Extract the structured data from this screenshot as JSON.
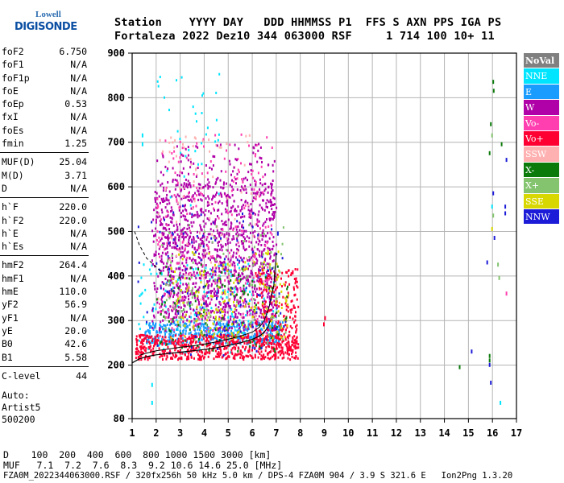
{
  "logo": {
    "top": "Lowell",
    "main": "DIGISONDE"
  },
  "header": {
    "line1": "Station    YYYY DAY   DDD HHMMSS P1  FFS S AXN PPS IGA PS",
    "line2": "Fortaleza 2022 Dez10 344 063000 RSF     1 714 100 10+ 11"
  },
  "parameters": [
    [
      {
        "name": "foF2",
        "value": "6.750"
      },
      {
        "name": "foF1",
        "value": "N/A"
      },
      {
        "name": "foF1p",
        "value": "N/A"
      },
      {
        "name": "foE",
        "value": "N/A"
      },
      {
        "name": "foEp",
        "value": "0.53"
      },
      {
        "name": "fxI",
        "value": "N/A"
      },
      {
        "name": "foEs",
        "value": "N/A"
      },
      {
        "name": "fmin",
        "value": "1.25"
      }
    ],
    [
      {
        "name": "MUF(D)",
        "value": "25.04"
      },
      {
        "name": "M(D)",
        "value": "3.71"
      },
      {
        "name": "D",
        "value": "N/A"
      }
    ],
    [
      {
        "name": "h`F",
        "value": "220.0"
      },
      {
        "name": "h`F2",
        "value": "220.0"
      },
      {
        "name": "h`E",
        "value": "N/A"
      },
      {
        "name": "h`Es",
        "value": "N/A"
      }
    ],
    [
      {
        "name": "hmF2",
        "value": "264.4"
      },
      {
        "name": "hmF1",
        "value": "N/A"
      },
      {
        "name": "hmE",
        "value": "110.0"
      },
      {
        "name": "yF2",
        "value": "56.9"
      },
      {
        "name": "yF1",
        "value": "N/A"
      },
      {
        "name": "yE",
        "value": "20.0"
      },
      {
        "name": "B0",
        "value": "42.6"
      },
      {
        "name": "B1",
        "value": "5.58"
      }
    ],
    [
      {
        "name": "C-level",
        "value": "44"
      }
    ]
  ],
  "auto_info": {
    "line1": "Auto:",
    "line2": "Artist5",
    "line3": "500200"
  },
  "legend": [
    {
      "label": "NoVal",
      "color": "#808080"
    },
    {
      "label": "NNE",
      "color": "#00e5ff"
    },
    {
      "label": "E",
      "color": "#1a9cff"
    },
    {
      "label": "W",
      "color": "#b000a8"
    },
    {
      "label": "Vo-",
      "color": "#ff3fb0"
    },
    {
      "label": "Vo+",
      "color": "#ff0033"
    },
    {
      "label": "SSW",
      "color": "#ffb0b0"
    },
    {
      "label": "X-",
      "color": "#0a7a0a"
    },
    {
      "label": "X+",
      "color": "#84c46e"
    },
    {
      "label": "SSE",
      "color": "#d8d800"
    },
    {
      "label": "NNW",
      "color": "#1c1cd8"
    }
  ],
  "mufline": {
    "d_line": "D    100  200  400  600  800 1000 1500 3000 [km]",
    "muf_line": "MUF   7.1  7.2  7.6  8.3  9.2 10.6 14.6 25.0 [MHz]"
  },
  "footer": "FZA0M_2022344063000.RSF / 320fx256h 50 kHz 5.0 km / DPS-4 FZA0M 904 / 3.9 S 321.6 E   Ion2Png 1.3.20",
  "chart_data": {
    "type": "scatter",
    "xlabel": "",
    "ylabel": "",
    "xlim": [
      1,
      17
    ],
    "ylim": [
      80,
      900
    ],
    "x_ticks": [
      1,
      2,
      3,
      4,
      5,
      6,
      7,
      8,
      9,
      10,
      11,
      12,
      13,
      14,
      15,
      16,
      17
    ],
    "y_ticks": [
      80,
      200,
      300,
      400,
      500,
      600,
      700,
      800,
      900
    ],
    "grid": true,
    "profile_curve": {
      "x": [
        1.0,
        1.3,
        1.6,
        2.0,
        2.5,
        3.0,
        3.5,
        4.0,
        4.5,
        5.0,
        5.5,
        6.0,
        6.3,
        6.5,
        6.65,
        6.75
      ],
      "y": [
        205,
        214,
        219,
        223,
        226,
        229,
        232,
        235,
        239,
        244,
        250,
        258,
        265,
        274,
        285,
        300
      ]
    },
    "trace_curve": {
      "x": [
        1.3,
        1.6,
        2.0,
        2.5,
        3.0,
        3.5,
        4.0,
        4.5,
        5.0,
        5.5,
        6.0,
        6.3,
        6.5,
        6.7,
        6.9,
        7.0
      ],
      "y": [
        222,
        227,
        232,
        236,
        240,
        243,
        247,
        252,
        258,
        265,
        274,
        285,
        300,
        330,
        380,
        450
      ]
    },
    "dashed_curve": {
      "x": [
        1.1,
        1.3,
        1.6,
        2.0,
        2.2
      ],
      "y": [
        500,
        470,
        440,
        420,
        410
      ]
    },
    "echo_regions": [
      {
        "series": "NNE",
        "x": [
          1.2,
          7.0
        ],
        "y": [
          230,
          430
        ],
        "count": 200
      },
      {
        "series": "E",
        "x": [
          1.5,
          7.3
        ],
        "y": [
          250,
          300
        ],
        "count": 450
      },
      {
        "series": "W",
        "x": [
          1.8,
          7.0
        ],
        "y": [
          280,
          620
        ],
        "count": 900
      },
      {
        "series": "W",
        "x": [
          2.2,
          6.8
        ],
        "y": [
          300,
          500
        ],
        "count": 400
      },
      {
        "series": "Vo-",
        "x": [
          2.0,
          6.8
        ],
        "y": [
          250,
          720
        ],
        "count": 250
      },
      {
        "series": "Vo+",
        "x": [
          1.1,
          7.9
        ],
        "y": [
          215,
          270
        ],
        "count": 650
      },
      {
        "series": "Vo+",
        "x": [
          6.1,
          7.9
        ],
        "y": [
          240,
          420
        ],
        "count": 200
      },
      {
        "series": "SSW",
        "x": [
          2.0,
          6.5
        ],
        "y": [
          300,
          720
        ],
        "count": 120
      },
      {
        "series": "X-",
        "x": [
          2.0,
          7.5
        ],
        "y": [
          230,
          430
        ],
        "count": 120
      },
      {
        "series": "X+",
        "x": [
          2.2,
          7.5
        ],
        "y": [
          250,
          520
        ],
        "count": 120
      },
      {
        "series": "SSE",
        "x": [
          2.5,
          7.5
        ],
        "y": [
          260,
          460
        ],
        "count": 180
      },
      {
        "series": "NNW",
        "x": [
          1.2,
          7.5
        ],
        "y": [
          220,
          560
        ],
        "count": 120
      },
      {
        "series": "NNE",
        "x": [
          2.0,
          4.6
        ],
        "y": [
          540,
          860
        ],
        "count": 35
      },
      {
        "series": "W",
        "x": [
          2.0,
          6.9
        ],
        "y": [
          480,
          700
        ],
        "count": 180
      }
    ],
    "isolated_marks": [
      {
        "series": "X-",
        "x": 16.0,
        "y": 840
      },
      {
        "series": "X-",
        "x": 16.02,
        "y": 820
      },
      {
        "series": "X-",
        "x": 15.9,
        "y": 745
      },
      {
        "series": "X+",
        "x": 15.95,
        "y": 720
      },
      {
        "series": "X-",
        "x": 15.85,
        "y": 680
      },
      {
        "series": "X-",
        "x": 16.35,
        "y": 700
      },
      {
        "series": "NNW",
        "x": 16.55,
        "y": 665
      },
      {
        "series": "NNW",
        "x": 16.0,
        "y": 590
      },
      {
        "series": "NNE",
        "x": 15.95,
        "y": 560
      },
      {
        "series": "X+",
        "x": 16.0,
        "y": 540
      },
      {
        "series": "SSE",
        "x": 15.95,
        "y": 510
      },
      {
        "series": "NNW",
        "x": 16.05,
        "y": 490
      },
      {
        "series": "NNW",
        "x": 16.5,
        "y": 560
      },
      {
        "series": "NNW",
        "x": 16.5,
        "y": 545
      },
      {
        "series": "NNW",
        "x": 15.75,
        "y": 435
      },
      {
        "series": "X+",
        "x": 16.2,
        "y": 430
      },
      {
        "series": "X+",
        "x": 16.25,
        "y": 400
      },
      {
        "series": "Vo-",
        "x": 16.55,
        "y": 365
      },
      {
        "series": "NNW",
        "x": 15.1,
        "y": 235
      },
      {
        "series": "X-",
        "x": 15.85,
        "y": 225
      },
      {
        "series": "X-",
        "x": 15.85,
        "y": 215
      },
      {
        "series": "NNW",
        "x": 15.85,
        "y": 205
      },
      {
        "series": "X-",
        "x": 14.6,
        "y": 200
      },
      {
        "series": "NNW",
        "x": 15.9,
        "y": 165
      },
      {
        "series": "NNE",
        "x": 16.3,
        "y": 120
      },
      {
        "series": "Vo+",
        "x": 9.0,
        "y": 310
      },
      {
        "series": "Vo+",
        "x": 8.95,
        "y": 296
      },
      {
        "series": "NNE",
        "x": 1.4,
        "y": 720
      },
      {
        "series": "NNE",
        "x": 1.4,
        "y": 700
      },
      {
        "series": "NNE",
        "x": 1.8,
        "y": 160
      },
      {
        "series": "NNE",
        "x": 1.8,
        "y": 120
      }
    ]
  }
}
